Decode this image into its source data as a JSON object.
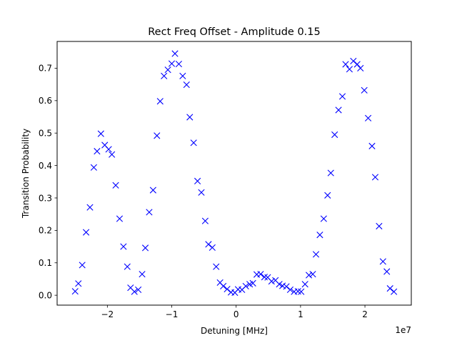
{
  "chart_data": {
    "type": "scatter",
    "title": "Rect Freq Offset - Amplitude 0.15",
    "xlabel": "Detuning [MHz]",
    "ylabel": "Transition Probability",
    "x_offset_label": "1e7",
    "xlim": [
      -2.78,
      2.72
    ],
    "ylim": [
      -0.0305,
      0.7825
    ],
    "xticks": [
      -2,
      -1,
      0,
      1,
      2
    ],
    "xtick_labels": [
      "−2",
      "−1",
      "0",
      "1",
      "2"
    ],
    "yticks": [
      0.0,
      0.1,
      0.2,
      0.3,
      0.4,
      0.5,
      0.6,
      0.7
    ],
    "ytick_labels": [
      "0.0",
      "0.1",
      "0.2",
      "0.3",
      "0.4",
      "0.5",
      "0.6",
      "0.7"
    ],
    "grid": false,
    "marker": "x",
    "color": "#0000ff",
    "series": [
      {
        "x": [
          -2.5,
          -2.45,
          -2.39,
          -2.33,
          -2.27,
          -2.21,
          -2.16,
          -2.1,
          -2.04,
          -1.98,
          -1.93,
          -1.87,
          -1.81,
          -1.75,
          -1.69,
          -1.64,
          -1.58,
          -1.52,
          -1.46,
          -1.41,
          -1.35,
          -1.29,
          -1.23,
          -1.18,
          -1.12,
          -1.06,
          -1.0,
          -0.95,
          -0.89,
          -0.83,
          -0.77,
          -0.72,
          -0.66,
          -0.6,
          -0.54,
          -0.48,
          -0.43,
          -0.37,
          -0.31,
          -0.25,
          -0.2,
          -0.14,
          -0.08,
          -0.02,
          0.03,
          0.09,
          0.15,
          0.21,
          0.26,
          0.32,
          0.38,
          0.44,
          0.49,
          0.55,
          0.61,
          0.67,
          0.72,
          0.78,
          0.84,
          0.9,
          0.96,
          1.01,
          1.07,
          1.13,
          1.19,
          1.24,
          1.3,
          1.36,
          1.42,
          1.47,
          1.53,
          1.59,
          1.65,
          1.7,
          1.76,
          1.82,
          1.88,
          1.93,
          1.99,
          2.05,
          2.11,
          2.16,
          2.22,
          2.28,
          2.34,
          2.39,
          2.45
        ],
        "y": [
          0.012,
          0.036,
          0.093,
          0.194,
          0.271,
          0.394,
          0.444,
          0.498,
          0.463,
          0.45,
          0.434,
          0.339,
          0.236,
          0.15,
          0.088,
          0.023,
          0.011,
          0.017,
          0.065,
          0.146,
          0.256,
          0.324,
          0.492,
          0.598,
          0.676,
          0.695,
          0.714,
          0.745,
          0.713,
          0.676,
          0.649,
          0.549,
          0.47,
          0.352,
          0.317,
          0.229,
          0.157,
          0.147,
          0.088,
          0.039,
          0.028,
          0.019,
          0.009,
          0.008,
          0.018,
          0.017,
          0.028,
          0.034,
          0.037,
          0.064,
          0.065,
          0.056,
          0.055,
          0.043,
          0.046,
          0.034,
          0.029,
          0.027,
          0.017,
          0.011,
          0.012,
          0.011,
          0.034,
          0.062,
          0.065,
          0.126,
          0.186,
          0.236,
          0.308,
          0.377,
          0.495,
          0.571,
          0.613,
          0.712,
          0.697,
          0.722,
          0.712,
          0.7,
          0.632,
          0.546,
          0.46,
          0.364,
          0.213,
          0.104,
          0.073,
          0.021,
          0.011
        ]
      }
    ]
  }
}
